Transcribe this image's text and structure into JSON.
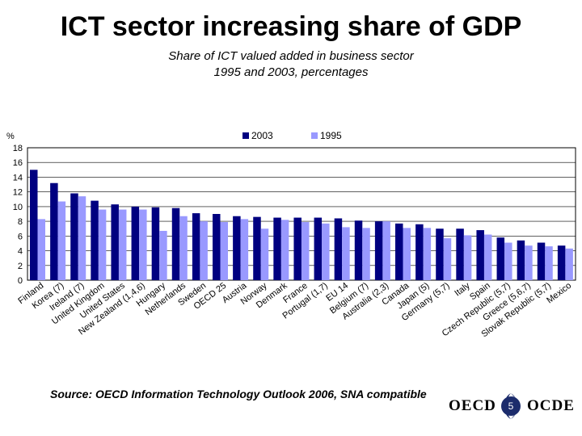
{
  "slide": {
    "title": "ICT sector increasing share of GDP",
    "subtitle_line1": "Share of ICT valued added in business sector",
    "subtitle_line2": "1995 and 2003, percentages",
    "source": "Source: OECD Information Technology Outlook 2006, SNA compatible",
    "logo_left": "OECD",
    "logo_right": "OCDE",
    "page_number": "5"
  },
  "colors": {
    "series_2003": "#000080",
    "series_1995": "#9999ff",
    "plot_background": "#ffffff",
    "gridline": "#000000"
  },
  "chart_data": {
    "type": "bar",
    "title": "",
    "xlabel": "",
    "ylabel": "%",
    "ylim": [
      0,
      18
    ],
    "yticks": [
      0,
      2,
      4,
      6,
      8,
      10,
      12,
      14,
      16,
      18
    ],
    "grid": true,
    "legend_position": "top",
    "categories": [
      "Finland",
      "Korea (7)",
      "Ireland (7)",
      "United Kingdom",
      "United States",
      "New Zealand (1,4,6)",
      "Hungary",
      "Netherlands",
      "Sweden",
      "OECD 25",
      "Austria",
      "Norway",
      "Denmark",
      "France",
      "Portugal (1,7)",
      "EU 14",
      "Belgium (7)",
      "Australia (2,3)",
      "Canada",
      "Japan (5)",
      "Germany (5,7)",
      "Italy",
      "Spain",
      "Czech Republic (5,7)",
      "Greece (5,6,7)",
      "Slovak Republic (5,7)",
      "Mexico"
    ],
    "series": [
      {
        "name": "2003",
        "values": [
          15.0,
          13.2,
          11.8,
          10.8,
          10.3,
          10.0,
          9.9,
          9.8,
          9.1,
          9.0,
          8.7,
          8.6,
          8.5,
          8.5,
          8.5,
          8.4,
          8.1,
          8.0,
          7.7,
          7.6,
          7.0,
          7.0,
          6.8,
          5.8,
          5.4,
          5.1,
          4.7
        ]
      },
      {
        "name": "1995",
        "values": [
          8.3,
          10.7,
          11.4,
          9.6,
          9.6,
          9.6,
          6.7,
          8.7,
          8.0,
          7.9,
          8.3,
          7.0,
          8.2,
          7.9,
          7.7,
          7.2,
          7.1,
          8.0,
          7.1,
          7.1,
          5.7,
          6.1,
          6.2,
          5.1,
          4.7,
          4.6,
          4.3
        ]
      }
    ]
  }
}
